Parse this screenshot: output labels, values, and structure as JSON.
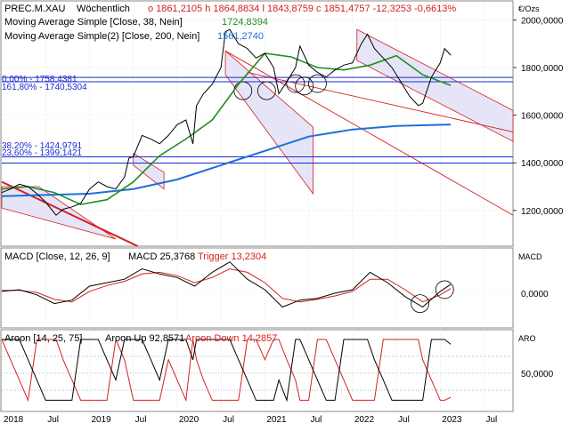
{
  "colors": {
    "price": "#000000",
    "ma38": "#1f8f1f",
    "ma200": "#1e6fd9",
    "macd": "#000000",
    "trigger": "#d42020",
    "aroon_up": "#000000",
    "aroon_down": "#d42020",
    "trend_red": "#d42020",
    "channel_fill": "#dcdcf4",
    "fib_blue": "#1a2ad0",
    "grid": "#d8d8d8"
  },
  "header": {
    "instrument": "PREC.M.XAU",
    "period": "Wöchentlich",
    "ohlc": "o 1861,2105  h 1864,8834  l 1843,8759  c 1851,4757  -12,3253  -0,6613%"
  },
  "legend": {
    "ma38_label": "Moving Average Simple  [Close, 38, Nein]",
    "ma38_value": "1724,8394",
    "ma200_label": "Moving Average Simple(2)  [Close, 200, Nein]",
    "ma200_value": "1561,2740"
  },
  "fib_labels": {
    "top_a": "0,00% - 1758,4381",
    "top_b": "161,80% - 1740,5304",
    "low_a": "38,20% - 1424,9791",
    "low_b": "23,60% - 1399,1421"
  },
  "price_axis": {
    "unit": "€/Ozs",
    "ticks": [
      "2000,0000",
      "1800,0000",
      "1600,0000",
      "1400,0000",
      "1200,0000"
    ]
  },
  "macd_panel": {
    "label": "MACD  [Close, 12, 26, 9]",
    "macd_value": "MACD 25,3768",
    "trigger_value": "Trigger 13,2304",
    "axis_title": "MACD",
    "tick": "0,0000"
  },
  "aroon_panel": {
    "label": "Aroon  [14, 25, 75]",
    "up_value": "Aroon Up 92,8571",
    "down_value": "Aroon Down 14,2857",
    "axis_title": "ARO",
    "tick": "50,0000"
  },
  "time_axis": {
    "labels": [
      "2018",
      "Jul",
      "2019",
      "Jul",
      "2020",
      "Jul",
      "2021",
      "Jul",
      "2022",
      "Jul",
      "2023",
      "Jul"
    ]
  },
  "chart_data": {
    "type": "line",
    "price_ylim": [
      1050,
      2080
    ],
    "time_ticks": [
      2018.0,
      2018.5,
      2019.0,
      2019.5,
      2020.0,
      2020.5,
      2021.0,
      2021.5,
      2022.0,
      2022.5,
      2023.0,
      2023.5
    ],
    "close": {
      "x": [
        2018.0,
        2018.1,
        2018.2,
        2018.3,
        2018.4,
        2018.5,
        2018.62,
        2018.7,
        2018.8,
        2018.9,
        2019.0,
        2019.1,
        2019.2,
        2019.3,
        2019.4,
        2019.45,
        2019.5,
        2019.6,
        2019.7,
        2019.8,
        2019.9,
        2020.0,
        2020.1,
        2020.18,
        2020.22,
        2020.3,
        2020.4,
        2020.5,
        2020.55,
        2020.6,
        2020.7,
        2020.8,
        2020.9,
        2021.0,
        2021.1,
        2021.16,
        2021.25,
        2021.35,
        2021.4,
        2021.5,
        2021.6,
        2021.7,
        2021.8,
        2021.9,
        2022.0,
        2022.1,
        2022.17,
        2022.25,
        2022.35,
        2022.45,
        2022.55,
        2022.65,
        2022.75,
        2022.8,
        2022.9,
        2023.0,
        2023.05,
        2023.12
      ],
      "y": [
        1275,
        1290,
        1310,
        1300,
        1270,
        1235,
        1180,
        1205,
        1215,
        1230,
        1290,
        1320,
        1300,
        1290,
        1340,
        1420,
        1425,
        1515,
        1500,
        1480,
        1515,
        1560,
        1580,
        1480,
        1640,
        1690,
        1730,
        1800,
        1950,
        1960,
        1900,
        1880,
        1840,
        1860,
        1800,
        1690,
        1740,
        1800,
        1890,
        1810,
        1780,
        1760,
        1790,
        1810,
        1820,
        1900,
        1940,
        1880,
        1840,
        1800,
        1740,
        1680,
        1640,
        1650,
        1760,
        1820,
        1880,
        1852
      ]
    },
    "ma38": {
      "x": [
        2018.0,
        2018.3,
        2018.6,
        2018.9,
        2019.2,
        2019.5,
        2019.8,
        2020.1,
        2020.4,
        2020.7,
        2021.0,
        2021.3,
        2021.6,
        2021.9,
        2022.2,
        2022.5,
        2022.8,
        2023.12
      ],
      "y": [
        1290,
        1300,
        1275,
        1225,
        1245,
        1320,
        1430,
        1500,
        1580,
        1730,
        1860,
        1845,
        1800,
        1790,
        1810,
        1850,
        1770,
        1725
      ]
    },
    "ma200": {
      "x": [
        2018.0,
        2018.5,
        2019.0,
        2019.5,
        2020.0,
        2020.5,
        2021.0,
        2021.5,
        2022.0,
        2022.5,
        2023.12
      ],
      "y": [
        1260,
        1265,
        1270,
        1290,
        1330,
        1390,
        1450,
        1510,
        1540,
        1555,
        1561
      ]
    },
    "fib_levels": [
      1758.4381,
      1740.5304,
      1424.9791,
      1399.1421
    ],
    "macd": {
      "x": [
        2018.0,
        2018.2,
        2018.4,
        2018.6,
        2018.8,
        2019.0,
        2019.2,
        2019.4,
        2019.6,
        2019.8,
        2020.0,
        2020.2,
        2020.4,
        2020.6,
        2020.8,
        2021.0,
        2021.2,
        2021.4,
        2021.6,
        2021.8,
        2022.0,
        2022.2,
        2022.4,
        2022.6,
        2022.8,
        2023.0,
        2023.12
      ],
      "macd": [
        5,
        10,
        -5,
        -30,
        -20,
        20,
        30,
        40,
        70,
        55,
        45,
        20,
        60,
        90,
        40,
        10,
        -40,
        -20,
        -15,
        0,
        10,
        60,
        30,
        -10,
        -40,
        5,
        25.38
      ],
      "trigger": [
        8,
        8,
        2,
        -18,
        -25,
        5,
        22,
        34,
        55,
        60,
        50,
        30,
        45,
        70,
        60,
        30,
        -15,
        -25,
        -18,
        -8,
        5,
        40,
        40,
        10,
        -25,
        -5,
        13.23
      ]
    },
    "aroon": {
      "up": 92.8571,
      "down": 14.2857,
      "ylim": [
        0,
        100
      ],
      "levels": [
        75,
        50,
        25
      ]
    }
  }
}
